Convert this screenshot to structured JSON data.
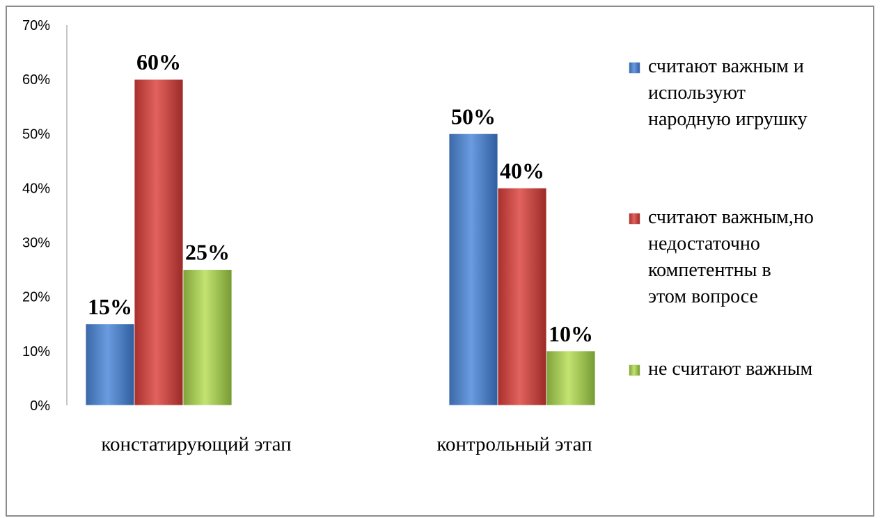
{
  "chart_data": {
    "type": "bar",
    "categories": [
      "констатирующий этап",
      "контрольный этап"
    ],
    "series": [
      {
        "name": "считают важным и используют народную игрушку",
        "legend_lines": [
          "считают важным и",
          "используют",
          "народную игрушку"
        ],
        "values": [
          15,
          50
        ],
        "labels": [
          "15%",
          "50%"
        ],
        "color": "#4f81bd"
      },
      {
        "name": "считают важным,но недостаточно компетентны в этом вопросе",
        "legend_lines": [
          "считают важным,но",
          "недостаточно",
          "компетентны в",
          "этом вопросе"
        ],
        "values": [
          60,
          40
        ],
        "labels": [
          "60%",
          "40%"
        ],
        "color": "#c0504d"
      },
      {
        "name": "не считают важным",
        "legend_lines": [
          "не считают важным"
        ],
        "values": [
          25,
          10
        ],
        "labels": [
          "25%",
          "10%"
        ],
        "color": "#9bbb59"
      }
    ],
    "ylim": [
      0,
      70
    ],
    "yticks": [
      "0%",
      "10%",
      "20%",
      "30%",
      "40%",
      "50%",
      "60%",
      "70%"
    ],
    "grid": false,
    "legend": "right"
  }
}
